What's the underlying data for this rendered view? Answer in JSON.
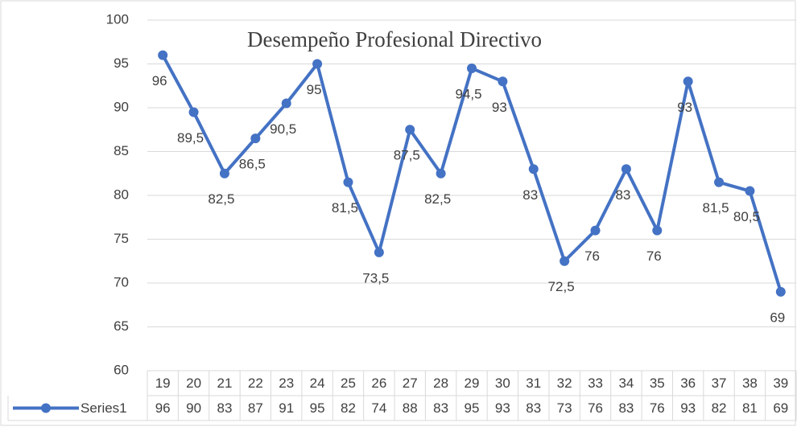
{
  "chart_data": {
    "type": "line",
    "title": "Desempeño Profesional Directivo",
    "categories": [
      "19",
      "20",
      "21",
      "22",
      "23",
      "24",
      "25",
      "26",
      "27",
      "28",
      "29",
      "30",
      "31",
      "32",
      "33",
      "34",
      "35",
      "36",
      "37",
      "38",
      "39"
    ],
    "series": [
      {
        "name": "Series1",
        "color": "#4472c4",
        "values": [
          96,
          89.5,
          82.5,
          86.5,
          90.5,
          95,
          81.5,
          73.5,
          87.5,
          82.5,
          94.5,
          93,
          83,
          72.5,
          76,
          83,
          76,
          93,
          81.5,
          80.5,
          69
        ],
        "value_labels": [
          "96",
          "89,5",
          "82,5",
          "86,5",
          "90,5",
          "95",
          "81,5",
          "73,5",
          "87,5",
          "82,5",
          "94,5",
          "93",
          "83",
          "72,5",
          "76",
          "83",
          "76",
          "93",
          "81,5",
          "80,5",
          "69"
        ],
        "table_labels": [
          "96",
          "90",
          "83",
          "87",
          "91",
          "95",
          "82",
          "74",
          "88",
          "83",
          "95",
          "93",
          "83",
          "73",
          "76",
          "83",
          "76",
          "93",
          "82",
          "81",
          "69"
        ]
      }
    ],
    "ylim": [
      60,
      100
    ],
    "yticks": [
      60,
      65,
      70,
      75,
      80,
      85,
      90,
      95,
      100
    ],
    "grid": true
  }
}
